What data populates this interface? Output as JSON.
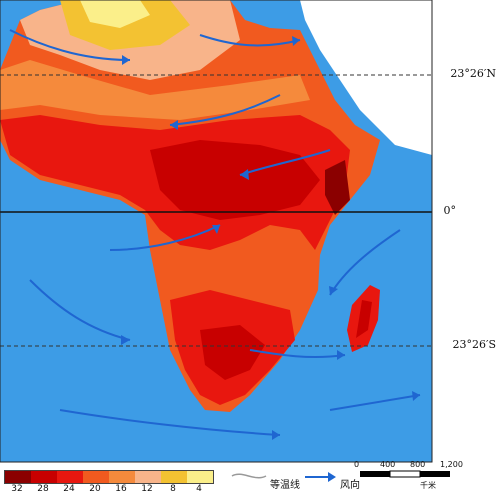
{
  "latitudes": {
    "tropic_cancer": "23°26′N",
    "equator": "0°",
    "tropic_capricorn": "23°26′S"
  },
  "legend": {
    "values": [
      "32",
      "28",
      "24",
      "20",
      "16",
      "12",
      "8",
      "4"
    ],
    "colors": [
      "#8b0000",
      "#c80000",
      "#e8170f",
      "#f15a1f",
      "#f58a3c",
      "#f8b48a",
      "#f3c232",
      "#fbef8a"
    ],
    "isotherm_label": "等温线",
    "wind_label": "风向"
  },
  "scale": {
    "ticks": [
      "0",
      "400",
      "800",
      "1,200"
    ],
    "unit": "千米"
  },
  "colors": {
    "ocean": "#3d9ce6",
    "land_outside": "#ffffff",
    "arrow": "#1f66d1"
  }
}
